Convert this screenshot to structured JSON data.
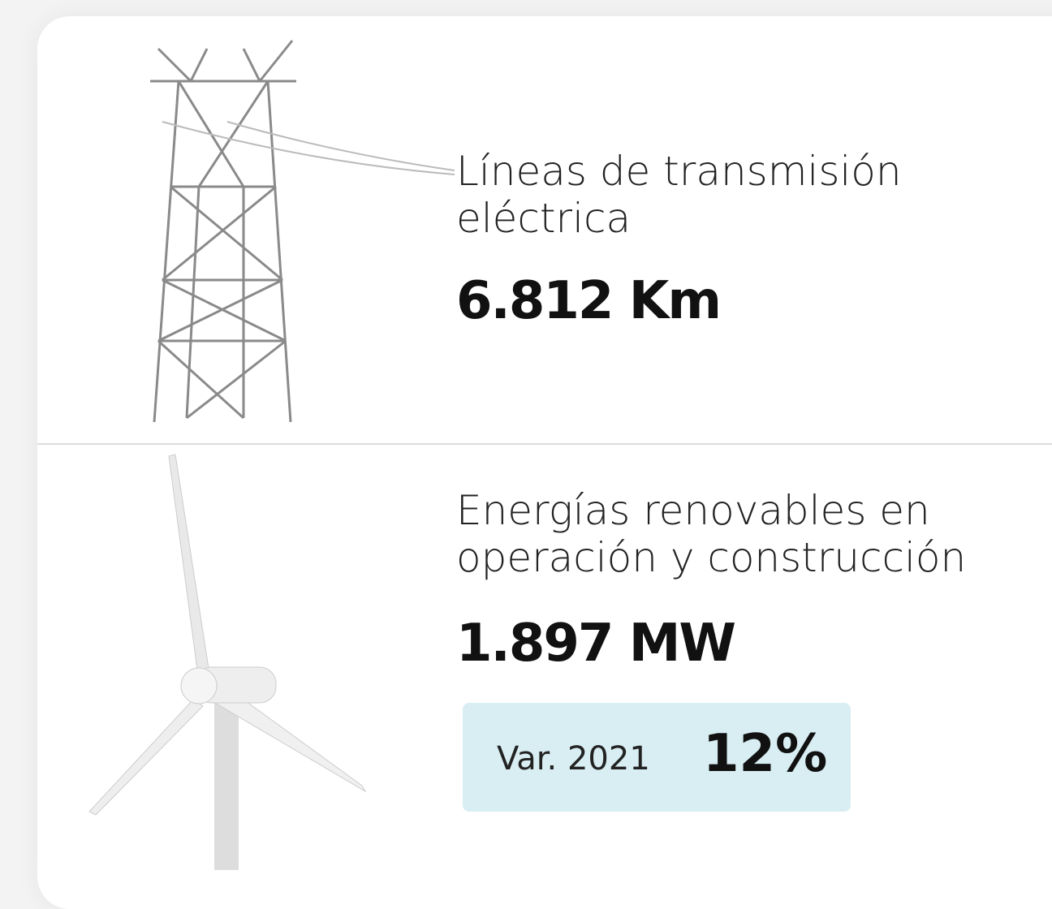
{
  "items": [
    {
      "label": "Líneas de transmisión eléctrica",
      "value": "6.812 Km"
    },
    {
      "label": "Energías renovables en operación y construcción",
      "value": "1.897 MW",
      "variation": {
        "label": "Var. 2021",
        "value": "12%"
      }
    }
  ]
}
